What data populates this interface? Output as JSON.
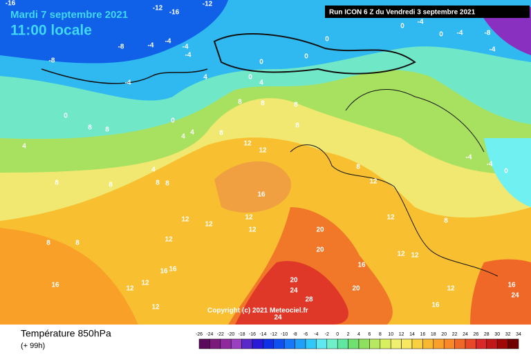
{
  "header": {
    "date": "Mardi 7 septembre 2021",
    "time": "11:00 locale"
  },
  "run_info": "Run ICON 6 Z du Vendredi 3 septembre 2021",
  "copyright": "Copyright (c) 2021 Meteociel.fr",
  "legend": {
    "title": "Température 850hPa",
    "subtitle": "(+ 99h)",
    "scale_labels": [
      "-26",
      "-24",
      "-22",
      "-20",
      "-18",
      "-16",
      "-14",
      "-12",
      "-10",
      "-8",
      "-6",
      "-4",
      "-2",
      "0",
      "2",
      "4",
      "6",
      "8",
      "10",
      "12",
      "14",
      "16",
      "18",
      "20",
      "22",
      "24",
      "26",
      "28",
      "30",
      "32",
      "34"
    ],
    "scale_colors": [
      "#5a0a5a",
      "#7a1a7a",
      "#8e2a9e",
      "#9a3fc0",
      "#5a2ac8",
      "#2a1ad8",
      "#1030e8",
      "#1050f0",
      "#1878f8",
      "#20a0f8",
      "#30c8f8",
      "#60e8f0",
      "#70f0c8",
      "#60e8a0",
      "#70e070",
      "#90e060",
      "#b8e860",
      "#d8f060",
      "#f0f070",
      "#f8e860",
      "#f8d040",
      "#f8b830",
      "#f8a028",
      "#f88828",
      "#f06828",
      "#e84828",
      "#d82828",
      "#c01818",
      "#a00808",
      "#700000"
    ]
  },
  "contour_labels": [
    "-16",
    "-12",
    "-16",
    "-12",
    "-8",
    "-8",
    "-4",
    "-4",
    "-4",
    "-4",
    "-4",
    "0",
    "0",
    "0",
    "0",
    "0",
    "0",
    "4",
    "4",
    "4",
    "4",
    "4",
    "4",
    "8",
    "8",
    "8",
    "8",
    "8",
    "8",
    "8",
    "8",
    "8",
    "8",
    "8",
    "8",
    "8",
    "8",
    "8",
    "12",
    "12",
    "12",
    "12",
    "12",
    "12",
    "12",
    "12",
    "12",
    "12",
    "12",
    "12",
    "12",
    "12",
    "12",
    "16",
    "16",
    "16",
    "16",
    "16",
    "16",
    "16",
    "20",
    "20",
    "20",
    "20",
    "24",
    "24",
    "24",
    "28",
    "-4",
    "-4",
    "0",
    "-8",
    "-4",
    "0",
    "0",
    "-4",
    "-4"
  ]
}
